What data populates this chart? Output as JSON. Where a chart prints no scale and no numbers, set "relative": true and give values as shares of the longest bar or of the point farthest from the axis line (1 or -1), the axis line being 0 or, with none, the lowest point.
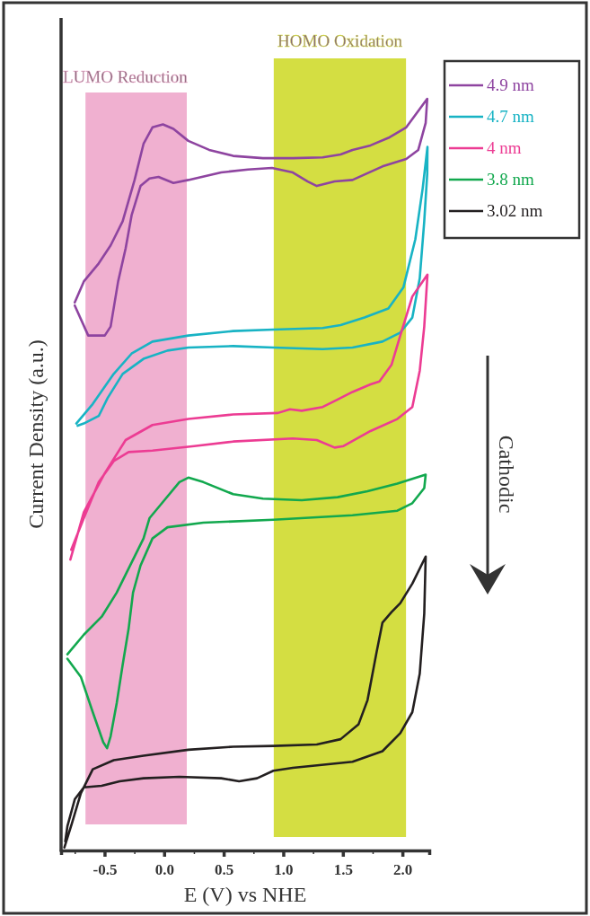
{
  "chart_data": {
    "type": "line",
    "relative": true,
    "xlabel": "E (V) vs NHE",
    "ylabel": "Current Density (a.u.)",
    "xlim": [
      -0.865,
      2.225
    ],
    "xticks": [
      {
        "value": -0.75,
        "label": null
      },
      {
        "value": -0.5,
        "label": "-0.5"
      },
      {
        "value": -0.25,
        "label": null
      },
      {
        "value": 0,
        "label": "0.0"
      },
      {
        "value": 0.25,
        "label": null
      },
      {
        "value": 0.5,
        "label": "0.5"
      },
      {
        "value": 0.75,
        "label": null
      },
      {
        "value": 1,
        "label": "1.0"
      },
      {
        "value": 1.25,
        "label": null
      },
      {
        "value": 1.5,
        "label": "1.5"
      },
      {
        "value": 1.75,
        "label": null
      },
      {
        "value": 2,
        "label": "2.0"
      }
    ],
    "legend": "top right",
    "tick_labels": "x",
    "bands": [
      {
        "axis": "x",
        "from": -0.66,
        "to": 0.19,
        "label": "LUMO Reduction",
        "color": "#f0b0d0"
      },
      {
        "axis": "x",
        "from": 0.92,
        "to": 2.03,
        "label": "HOMO Oxidation",
        "color": "#d4de42"
      }
    ],
    "annotations": [
      "Cathodic"
    ],
    "series": [
      {
        "name": "4.9 nm",
        "color": "#8e44a0",
        "x": [
          -0.75,
          -0.674,
          -0.549,
          -0.449,
          -0.348,
          -0.248,
          -0.173,
          -0.098,
          -0.01,
          0.078,
          0.203,
          0.378,
          0.579,
          0.829,
          1.08,
          1.331,
          1.481,
          1.581,
          1.732,
          1.882,
          2.032,
          2.208,
          2.195,
          2.133,
          2.032,
          1.832,
          1.581,
          1.431,
          1.281,
          1.205,
          1.08,
          0.905,
          0.704,
          0.479,
          0.203,
          0.078,
          -0.047,
          -0.123,
          -0.198,
          -0.273,
          -0.323,
          -0.386,
          -0.449,
          -0.498,
          -0.637,
          -0.75
        ],
        "values": [
          0.729,
          0.757,
          0.781,
          0.805,
          0.837,
          0.892,
          0.94,
          0.962,
          0.966,
          0.96,
          0.944,
          0.932,
          0.924,
          0.921,
          0.921,
          0.922,
          0.926,
          0.932,
          0.938,
          0.948,
          0.962,
          1,
          0.968,
          0.932,
          0.92,
          0.91,
          0.892,
          0.89,
          0.884,
          0.89,
          0.902,
          0.908,
          0.906,
          0.902,
          0.892,
          0.888,
          0.896,
          0.894,
          0.884,
          0.845,
          0.801,
          0.757,
          0.697,
          0.685,
          0.685,
          0.725
        ]
      },
      {
        "name": "4.7 nm",
        "color": "#18b3c4",
        "x": [
          -0.737,
          -0.599,
          -0.423,
          -0.273,
          -0.098,
          0.203,
          0.579,
          0.917,
          1.331,
          1.481,
          1.682,
          1.882,
          2.008,
          2.108,
          2.17,
          2.21,
          2.208,
          2.183,
          2.145,
          2.083,
          1.982,
          1.832,
          1.581,
          1.331,
          0.917,
          0.579,
          0.203,
          0.028,
          -0.173,
          -0.348,
          -0.474,
          -0.549,
          -0.674,
          -0.726
        ],
        "values": [
          0.568,
          0.594,
          0.634,
          0.661,
          0.677,
          0.685,
          0.691,
          0.693,
          0.695,
          0.699,
          0.709,
          0.721,
          0.749,
          0.813,
          0.881,
          0.936,
          0.9,
          0.837,
          0.761,
          0.709,
          0.689,
          0.677,
          0.669,
          0.667,
          0.669,
          0.671,
          0.669,
          0.665,
          0.654,
          0.634,
          0.602,
          0.578,
          0.568,
          0.565
        ]
      },
      {
        "name": "4 nm",
        "color": "#ec3c93",
        "x": [
          -0.787,
          -0.674,
          -0.498,
          -0.323,
          -0.098,
          0.203,
          0.579,
          0.955,
          1.055,
          1.155,
          1.331,
          1.456,
          1.581,
          1.732,
          1.807,
          1.908,
          1.982,
          2.083,
          2.21,
          2.183,
          2.145,
          2.083,
          1.957,
          1.732,
          1.506,
          1.431,
          1.281,
          1.08,
          0.579,
          0.253,
          -0.098,
          -0.298,
          -0.423,
          -0.549,
          -0.674,
          -0.78
        ],
        "values": [
          0.387,
          0.45,
          0.502,
          0.546,
          0.566,
          0.574,
          0.58,
          0.582,
          0.587,
          0.585,
          0.59,
          0.6,
          0.61,
          0.62,
          0.624,
          0.646,
          0.685,
          0.737,
          0.766,
          0.697,
          0.638,
          0.59,
          0.574,
          0.558,
          0.538,
          0.536,
          0.546,
          0.548,
          0.544,
          0.538,
          0.532,
          0.53,
          0.518,
          0.49,
          0.442,
          0.4
        ]
      },
      {
        "name": "3.8 nm",
        "color": "#12a84e",
        "x": [
          -0.812,
          -0.674,
          -0.524,
          -0.398,
          -0.273,
          -0.173,
          -0.123,
          0.002,
          0.128,
          0.203,
          0.329,
          0.579,
          0.829,
          1.155,
          1.456,
          1.707,
          1.957,
          2.195,
          2.183,
          2.083,
          1.957,
          1.581,
          0.917,
          0.329,
          0.028,
          -0.098,
          -0.198,
          -0.261,
          -0.298,
          -0.348,
          -0.398,
          -0.449,
          -0.479,
          -0.511,
          -0.599,
          -0.699,
          -0.812
        ],
        "values": [
          0.261,
          0.287,
          0.311,
          0.343,
          0.383,
          0.415,
          0.442,
          0.466,
          0.49,
          0.496,
          0.49,
          0.474,
          0.468,
          0.466,
          0.47,
          0.478,
          0.488,
          0.5,
          0.482,
          0.462,
          0.452,
          0.446,
          0.44,
          0.436,
          0.43,
          0.415,
          0.379,
          0.343,
          0.295,
          0.247,
          0.196,
          0.152,
          0.136,
          0.144,
          0.184,
          0.231,
          0.255
        ]
      },
      {
        "name": "3.02 nm",
        "color": "#231f20",
        "x": [
          -0.837,
          -0.774,
          -0.699,
          -0.599,
          -0.423,
          -0.173,
          0.203,
          0.579,
          0.917,
          1.281,
          1.481,
          1.632,
          1.707,
          1.782,
          1.832,
          1.908,
          1.982,
          2.083,
          2.195,
          2.183,
          2.145,
          2.083,
          1.982,
          1.832,
          1.581,
          1.08,
          0.917,
          0.78,
          0.629,
          0.479,
          0.128,
          -0.173,
          -0.373,
          -0.524,
          -0.674,
          -0.75,
          -0.812,
          -0.83
        ],
        "values": [
          0.004,
          0.036,
          0.076,
          0.108,
          0.12,
          0.126,
          0.134,
          0.138,
          0.139,
          0.141,
          0.148,
          0.168,
          0.2,
          0.263,
          0.303,
          0.317,
          0.329,
          0.355,
          0.391,
          0.315,
          0.235,
          0.184,
          0.156,
          0.132,
          0.118,
          0.11,
          0.106,
          0.096,
          0.092,
          0.096,
          0.098,
          0.096,
          0.092,
          0.086,
          0.084,
          0.068,
          0.032,
          0.012
        ]
      }
    ]
  }
}
